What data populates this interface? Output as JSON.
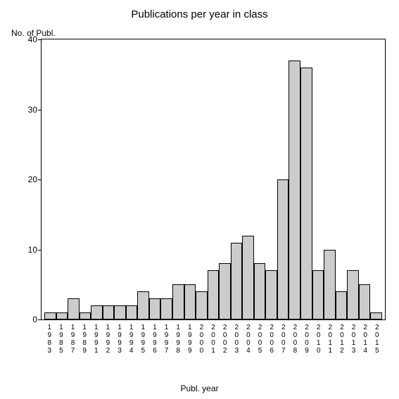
{
  "chart": {
    "type": "bar",
    "title": "Publications per year in class",
    "title_fontsize": 15,
    "ylabel": "No. of Publ.",
    "xlabel": "Publ. year",
    "label_fontsize": 12,
    "ylim": [
      0,
      40
    ],
    "yticks": [
      0,
      10,
      20,
      30,
      40
    ],
    "categories": [
      "1983",
      "1985",
      "1987",
      "1989",
      "1991",
      "1992",
      "1993",
      "1994",
      "1995",
      "1996",
      "1997",
      "1998",
      "1999",
      "2000",
      "2001",
      "2002",
      "2003",
      "2004",
      "2005",
      "2006",
      "2007",
      "2008",
      "2009",
      "2010",
      "2011",
      "2012",
      "2013",
      "2014",
      "2015"
    ],
    "values": [
      1,
      1,
      3,
      1,
      2,
      2,
      2,
      2,
      4,
      3,
      3,
      5,
      5,
      4,
      7,
      8,
      11,
      12,
      8,
      7,
      20,
      37,
      36,
      7,
      10,
      4,
      7,
      5,
      1
    ],
    "bar_color": "#cccccc",
    "bar_border_color": "#000000",
    "background_color": "#ffffff",
    "axis_color": "#000000",
    "tick_fontsize": 12,
    "xtick_fontsize": 10
  }
}
